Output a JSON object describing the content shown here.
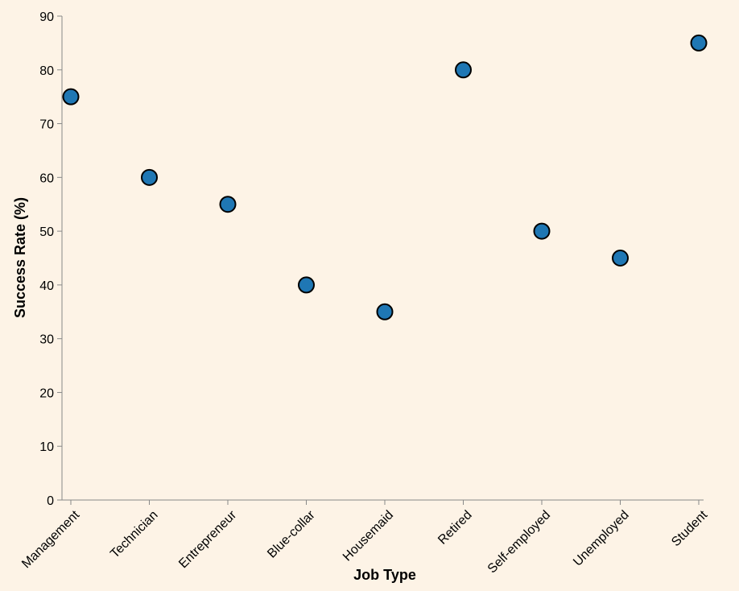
{
  "chart_data": {
    "type": "scatter",
    "title": "",
    "xlabel": "Job Type",
    "ylabel": "Success Rate (%)",
    "categories": [
      "Management",
      "Technician",
      "Entrepreneur",
      "Blue-collar",
      "Housemaid",
      "Retired",
      "Self-employed",
      "Unemployed",
      "Student"
    ],
    "values": [
      75,
      60,
      55,
      40,
      35,
      80,
      50,
      45,
      85
    ],
    "ylim": [
      0,
      90
    ],
    "yticks": [
      0,
      10,
      20,
      30,
      40,
      50,
      60,
      70,
      80,
      90
    ],
    "grid": false,
    "legend": "none",
    "colors": {
      "point_fill": "#1f77b4",
      "point_stroke": "#000000",
      "axis": "#888888",
      "background": "#fdf3e6"
    }
  }
}
